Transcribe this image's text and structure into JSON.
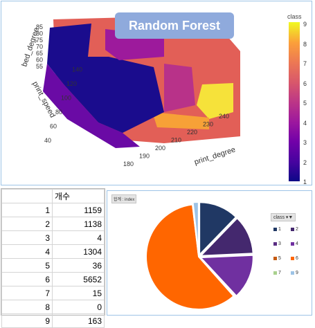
{
  "plot3d": {
    "title": "Random Forest",
    "axes": {
      "x_label": "print_degree",
      "y_label": "print_speed",
      "z_label": "bed_degree",
      "x_ticks": [
        "180",
        "190",
        "200",
        "210",
        "220",
        "230",
        "240"
      ],
      "y_ticks": [
        "40",
        "60",
        "80",
        "100",
        "120",
        "140"
      ],
      "z_ticks": [
        "85",
        "80",
        "75",
        "70",
        "65",
        "60",
        "55"
      ]
    },
    "colorbar": {
      "title": "class",
      "ticks": [
        "9",
        "8",
        "7",
        "6",
        "5",
        "4",
        "3",
        "2",
        "1"
      ],
      "colorscale": [
        "#0d0887",
        "#46039f",
        "#7201a8",
        "#9c179e",
        "#bd3786",
        "#d8576b",
        "#ed7953",
        "#fb9f3a",
        "#f0f921"
      ]
    }
  },
  "table": {
    "header": "개수",
    "rows": [
      {
        "index": "1",
        "value": "1159"
      },
      {
        "index": "2",
        "value": "1138"
      },
      {
        "index": "3",
        "value": "4"
      },
      {
        "index": "4",
        "value": "1304"
      },
      {
        "index": "5",
        "value": "36"
      },
      {
        "index": "6",
        "value": "5652"
      },
      {
        "index": "7",
        "value": "15"
      },
      {
        "index": "8",
        "value": "0"
      },
      {
        "index": "9",
        "value": "163"
      }
    ]
  },
  "pie": {
    "field_button": "합계 : index",
    "legend_title": "class",
    "legend_items": [
      "1",
      "2",
      "3",
      "4",
      "5",
      "6",
      "7",
      "9"
    ]
  },
  "chart_data": {
    "type": "pie",
    "categories": [
      "1",
      "2",
      "3",
      "4",
      "5",
      "6",
      "7",
      "8",
      "9"
    ],
    "values": [
      1159,
      1138,
      4,
      1304,
      36,
      5652,
      15,
      0,
      163
    ],
    "colors": [
      "#203864",
      "#44286e",
      "#5a2d82",
      "#7030a0",
      "#c55a11",
      "#ff6600",
      "#a9d18e",
      "#999999",
      "#9dc3e6"
    ],
    "legend_placement": "right"
  }
}
